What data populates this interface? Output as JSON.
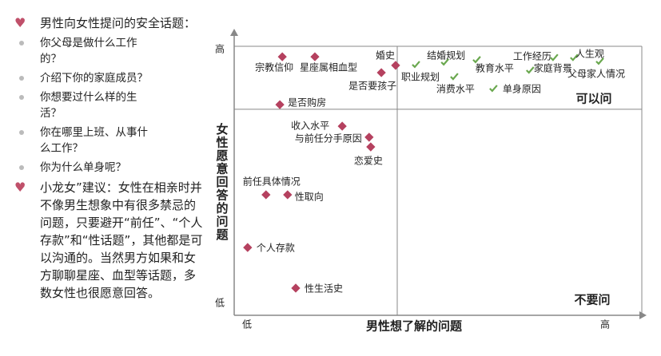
{
  "left_panel": {
    "items": [
      {
        "text": "男性向女性提问的安全话题：",
        "subitems": [
          "你父母是做什么工作的？",
          "介绍下你的家庭成员？",
          "你想要过什么样的生活？",
          "你在哪里上班、从事什么工作？",
          "你为什么单身呢？"
        ]
      },
      {
        "text": "小龙女”建议：女性在相亲时并不像男生想象中有很多禁忌的问题，只要避开“前任”、“个人存款”和“性话题”，其他都是可以沟通的。当然男方如果和女方聊聊星座、血型等话题，多数女性也很愿意回答。"
      }
    ]
  },
  "chart_data": {
    "type": "scatter",
    "x_label": "男性想了解的问题",
    "y_label": "女性愿意回答的问题",
    "xlim": [
      0,
      10
    ],
    "ylim": [
      0,
      10
    ],
    "xticks": [
      {
        "value": 0,
        "label": "低"
      },
      {
        "value": 10,
        "label": "高"
      }
    ],
    "yticks": [
      {
        "value": 0,
        "label": "低"
      },
      {
        "value": 10,
        "label": "高"
      }
    ],
    "x_divider": 4,
    "y_divider": 7.66,
    "quadrant_labels": [
      "可以问",
      "不要问"
    ],
    "quadrant_colors": [
      "#2e75b6",
      "#c0392b"
    ],
    "axis_title_color": "#c0506a",
    "series": [
      {
        "marker": "diamond",
        "color": "#b5415f",
        "labels": [
          "宗教信仰",
          "星座属相血型",
          "婚史",
          "是否要孩子",
          "是否购房",
          "收入水平",
          "与前任分手原因",
          "恋爱史",
          "前任具体情况",
          "性取向",
          "个人存款",
          "性生活史"
        ],
        "x": [
          1.18,
          1.98,
          3.96,
          3.61,
          1.12,
          2.65,
          3.31,
          3.35,
          0.78,
          1.31,
          0.33,
          1.51
        ],
        "values": [
          9.61,
          9.61,
          9.29,
          9.02,
          7.83,
          7.03,
          6.62,
          6.26,
          4.48,
          4.48,
          2.52,
          1.01
        ]
      },
      {
        "marker": "check",
        "color": "#6aa84f",
        "labels": [
          "职业规划",
          "结婚规划",
          "消费水平",
          "教育水平",
          "单身原因",
          "家庭背景",
          "工作经历",
          "人生观",
          "父母家人情况"
        ],
        "x": [
          4.45,
          5.16,
          5.39,
          5.94,
          6.35,
          7.25,
          7.84,
          8.33,
          8.96
        ],
        "values": [
          9.32,
          9.41,
          8.87,
          9.5,
          8.43,
          9.11,
          9.58,
          9.58,
          9.44
        ]
      }
    ]
  }
}
